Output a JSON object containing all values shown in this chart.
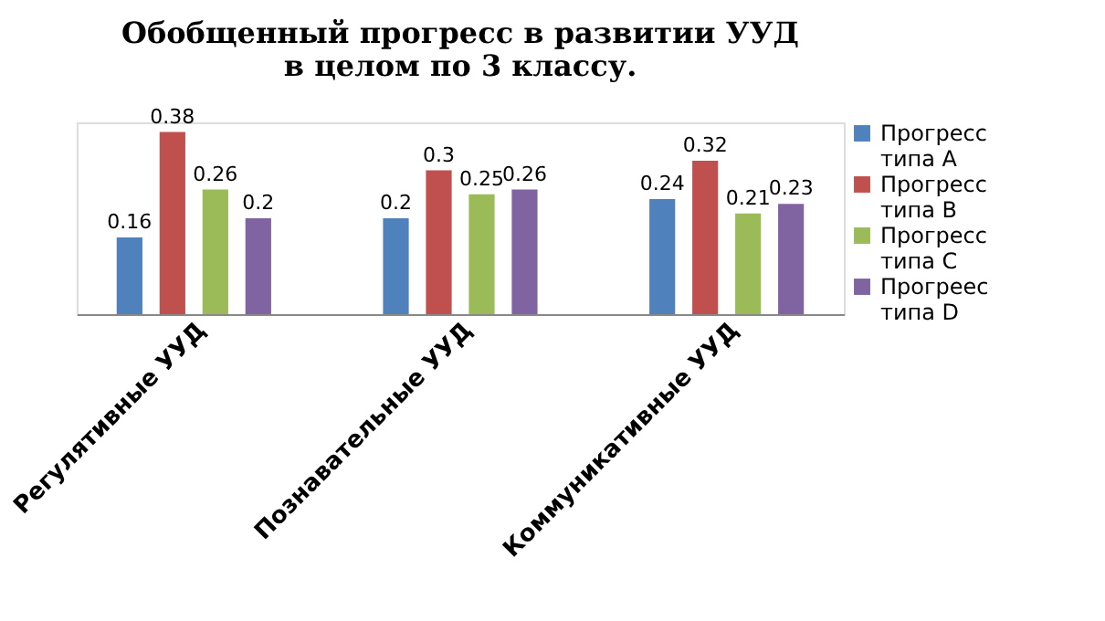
{
  "chart_data": {
    "type": "bar",
    "title": "Обобщенный прогресс в развитии УУД\nв целом по 3 классу.",
    "categories": [
      "Регулятивные УУД",
      "Познавательные УУД",
      "Коммуникативные УУД"
    ],
    "series": [
      {
        "name": "Прогресс типа A",
        "color": "#4f81bd",
        "values": [
          0.16,
          0.2,
          0.24
        ]
      },
      {
        "name": "Прогресс типа B",
        "color": "#c0504d",
        "values": [
          0.38,
          0.3,
          0.32
        ]
      },
      {
        "name": "Прогресс типа C",
        "color": "#9bbb59",
        "values": [
          0.26,
          0.25,
          0.21
        ]
      },
      {
        "name": "Прогреес типа D",
        "color": "#8064a2",
        "values": [
          0.2,
          0.26,
          0.23
        ]
      }
    ],
    "ylim": [
      0,
      0.4
    ],
    "data_labels": true,
    "legend": "right",
    "tick_labels": "x"
  }
}
